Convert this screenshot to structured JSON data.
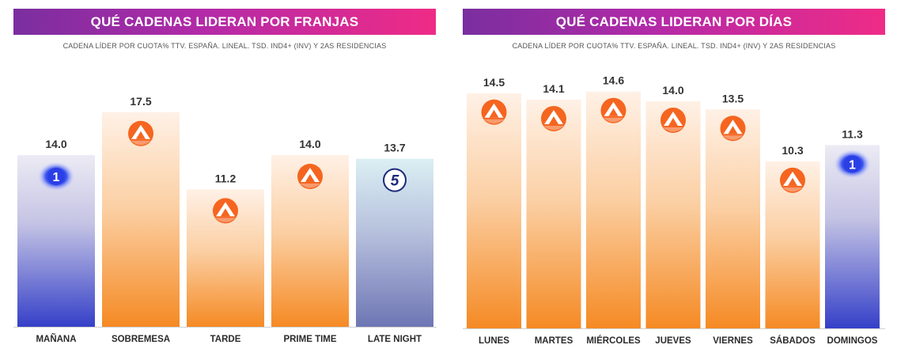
{
  "colors": {
    "banner_start": "#7a2e9f",
    "banner_end": "#ef2b86",
    "antena3_orange": "#f5651f",
    "la1_blue": "#2f3fd0",
    "telecinco_blue": "#1c2b7a"
  },
  "chart_data": [
    {
      "type": "bar",
      "title": "QUÉ CADENAS LIDERAN POR FRANJAS",
      "subtitle": "CADENA LÍDER POR CUOTA% TTV. ESPAÑA. LINEAL. TSD. IND4+ (INV) Y 2AS RESIDENCIAS",
      "xlabel": "",
      "ylabel": "",
      "ylim": [
        0,
        20
      ],
      "grid": false,
      "categories": [
        "MAÑANA",
        "SOBREMESA",
        "TARDE",
        "PRIME TIME",
        "LATE NIGHT"
      ],
      "values": [
        14.0,
        17.5,
        11.2,
        14.0,
        13.7
      ],
      "value_labels": [
        "14.0",
        "17.5",
        "11.2",
        "14.0",
        "13.7"
      ],
      "bar_channels": [
        "la1",
        "antena3",
        "antena3",
        "antena3",
        "telecinco"
      ],
      "channel_icons": [
        "la1-logo-icon",
        "antena3-logo-icon",
        "antena3-logo-icon",
        "antena3-logo-icon",
        "telecinco-logo-icon"
      ]
    },
    {
      "type": "bar",
      "title": "QUÉ CADENAS LIDERAN POR DÍAS",
      "subtitle": "CADENA LÍDER POR CUOTA% TTV. ESPAÑA. LINEAL. TSD. IND4+ (INV) Y 2AS RESIDENCIAS",
      "xlabel": "",
      "ylabel": "",
      "ylim": [
        0,
        16
      ],
      "grid": false,
      "categories": [
        "LUNES",
        "MARTES",
        "MIÉRCOLES",
        "JUEVES",
        "VIERNES",
        "SÁBADOS",
        "DOMINGOS"
      ],
      "values": [
        14.5,
        14.1,
        14.6,
        14.0,
        13.5,
        10.3,
        11.3
      ],
      "value_labels": [
        "14.5",
        "14.1",
        "14.6",
        "14.0",
        "13.5",
        "10.3",
        "11.3"
      ],
      "bar_channels": [
        "antena3",
        "antena3",
        "antena3",
        "antena3",
        "antena3",
        "antena3",
        "la1"
      ],
      "channel_icons": [
        "antena3-logo-icon",
        "antena3-logo-icon",
        "antena3-logo-icon",
        "antena3-logo-icon",
        "antena3-logo-icon",
        "antena3-logo-icon",
        "la1-logo-icon"
      ]
    }
  ],
  "logos": {
    "la1": "1",
    "telecinco": "5"
  }
}
